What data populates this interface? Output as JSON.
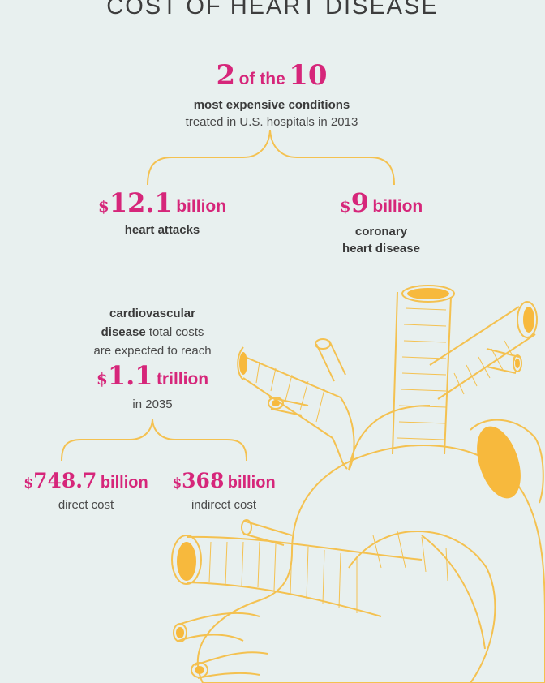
{
  "title": "COST OF HEART DISEASE",
  "top_stat": {
    "number_a": "2",
    "connector": "of the",
    "number_b": "10",
    "line1": "most expensive conditions",
    "line2": "treated in U.S. hospitals in 2013"
  },
  "heart_attacks": {
    "dollar": "$",
    "amount": "12.1",
    "unit": "billion",
    "label": "heart attacks"
  },
  "coronary": {
    "dollar": "$",
    "amount": "9",
    "unit": "billion",
    "label1": "coronary",
    "label2": "heart disease"
  },
  "cvd": {
    "line1": "cardiovascular",
    "line2_bold": "disease",
    "line2_rest": "total costs",
    "line3": "are expected to reach",
    "dollar": "$",
    "amount": "1.1",
    "unit": "trillion",
    "year_line": "in 2035"
  },
  "direct": {
    "dollar": "$",
    "amount": "748.7",
    "unit": "billion",
    "label": "direct cost"
  },
  "indirect": {
    "dollar": "$",
    "amount": "368",
    "unit": "billion",
    "label": "indirect cost"
  },
  "colors": {
    "background": "#e8f0ef",
    "accent": "#d6267a",
    "brace": "#f4c150",
    "heart_fill": "#f7b93d"
  }
}
